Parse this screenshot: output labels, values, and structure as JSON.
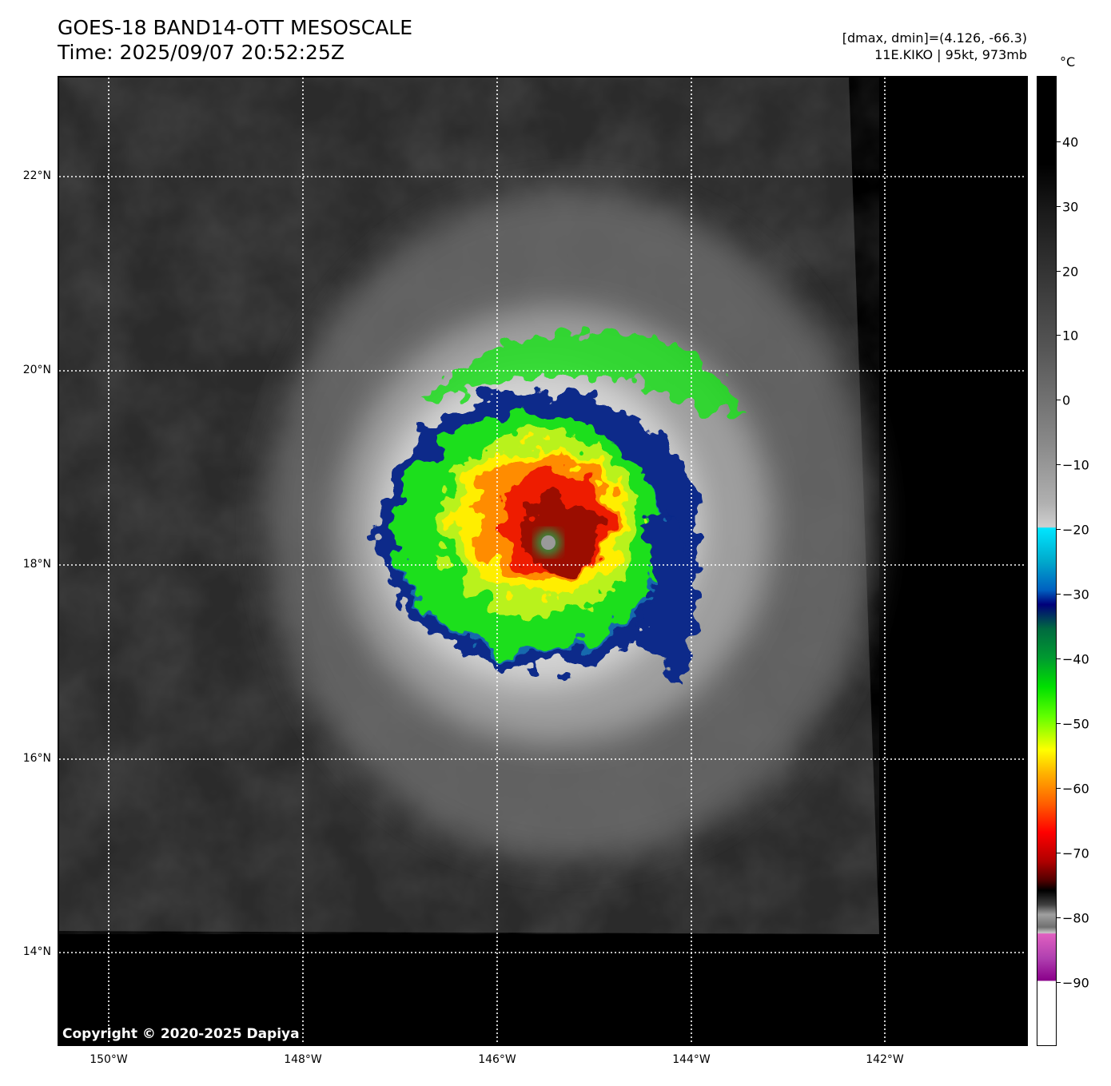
{
  "header": {
    "title": "GOES-18 BAND14-OTT MESOSCALE",
    "time": "Time: 2025/09/07 20:52:25Z",
    "range": "[dmax, dmin]=(4.126, -66.3)",
    "storm": "11E.KIKO | 95kt, 973mb"
  },
  "map": {
    "latitude_labels": [
      "22°N",
      "20°N",
      "18°N",
      "16°N",
      "14°N"
    ],
    "longitude_labels": [
      "150°W",
      "148°W",
      "146°W",
      "144°W",
      "142°W"
    ],
    "grid_style": "dotted white",
    "copyright": "Copyright © 2020-2025 Dapiya"
  },
  "colorbar": {
    "unit": "°C",
    "ticks": [
      "40",
      "30",
      "20",
      "10",
      "0",
      "−10",
      "−20",
      "−30",
      "−40",
      "−50",
      "−60",
      "−70",
      "−80",
      "−90"
    ]
  }
}
